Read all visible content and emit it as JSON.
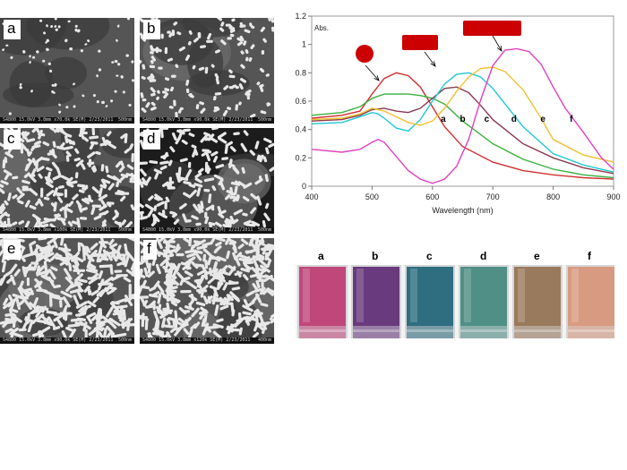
{
  "panels": [
    {
      "label": "a",
      "info": "S4800 15.0kV 3.8mm x70.0k SE(M) 2/23/2011",
      "scale": "500nm"
    },
    {
      "label": "b",
      "info": "S4800 15.0kV 3.8mm x90.0k SE(M) 2/23/2011",
      "scale": "500nm"
    },
    {
      "label": "c",
      "info": "S4800 15.0kV 3.8mm x100k SE(M) 2/23/2011",
      "scale": "500nm"
    },
    {
      "label": "d",
      "info": "S4800 15.0kV 3.8mm x90.0k SE(M) 2/23/2011",
      "scale": "500nm"
    },
    {
      "label": "e",
      "info": "S4800 15.0kV 3.8mm x90.0k SE(M) 2/23/2011",
      "scale": "500nm"
    },
    {
      "label": "f",
      "info": "S4800 15.0kV 3.8mm x120k SE(M) 2/23/2011",
      "scale": "400nm"
    }
  ],
  "vials": {
    "labels": [
      "a",
      "b",
      "c",
      "d",
      "e",
      "f"
    ],
    "colors": [
      "#c0477a",
      "#6a3a7e",
      "#2f6e80",
      "#4f8f86",
      "#9a7a5c",
      "#d89a80"
    ]
  },
  "chart_data": {
    "type": "line",
    "xlabel": "Wavelength  (nm)",
    "ylabel": "Abs.",
    "xlim": [
      400,
      900
    ],
    "ylim": [
      0,
      1.2
    ],
    "xticks": [
      400,
      500,
      600,
      700,
      800,
      900
    ],
    "yticks": [
      0,
      0.2,
      0.4,
      0.6,
      0.8,
      1,
      1.2
    ],
    "series": [
      {
        "name": "a",
        "color": "#d03030",
        "x": [
          400,
          450,
          480,
          500,
          520,
          540,
          560,
          580,
          600,
          620,
          650,
          700,
          750,
          800,
          850,
          900
        ],
        "y": [
          0.48,
          0.5,
          0.53,
          0.65,
          0.76,
          0.8,
          0.78,
          0.7,
          0.56,
          0.42,
          0.28,
          0.17,
          0.11,
          0.08,
          0.06,
          0.05
        ]
      },
      {
        "name": "b",
        "color": "#3cb040",
        "x": [
          400,
          450,
          480,
          500,
          520,
          540,
          560,
          580,
          600,
          620,
          650,
          700,
          750,
          800,
          850,
          900
        ],
        "y": [
          0.5,
          0.52,
          0.56,
          0.62,
          0.65,
          0.65,
          0.65,
          0.64,
          0.62,
          0.58,
          0.46,
          0.3,
          0.19,
          0.12,
          0.08,
          0.06
        ]
      },
      {
        "name": "c",
        "color": "#8b3a50",
        "x": [
          400,
          450,
          480,
          500,
          520,
          540,
          560,
          580,
          600,
          620,
          640,
          660,
          680,
          700,
          750,
          800,
          850,
          900
        ],
        "y": [
          0.46,
          0.47,
          0.5,
          0.54,
          0.55,
          0.53,
          0.52,
          0.55,
          0.62,
          0.69,
          0.7,
          0.66,
          0.57,
          0.47,
          0.3,
          0.2,
          0.13,
          0.09
        ]
      },
      {
        "name": "d",
        "color": "#20c8d8",
        "x": [
          400,
          450,
          480,
          500,
          510,
          520,
          540,
          560,
          580,
          600,
          620,
          640,
          660,
          680,
          700,
          750,
          800,
          850,
          900
        ],
        "y": [
          0.44,
          0.45,
          0.49,
          0.52,
          0.51,
          0.48,
          0.41,
          0.39,
          0.47,
          0.6,
          0.72,
          0.79,
          0.8,
          0.77,
          0.69,
          0.42,
          0.23,
          0.15,
          0.1
        ]
      },
      {
        "name": "e",
        "color": "#f0c030",
        "x": [
          400,
          450,
          480,
          500,
          520,
          540,
          560,
          580,
          600,
          620,
          640,
          660,
          680,
          700,
          720,
          750,
          780,
          800,
          850,
          900
        ],
        "y": [
          0.47,
          0.48,
          0.51,
          0.55,
          0.53,
          0.49,
          0.45,
          0.43,
          0.46,
          0.55,
          0.67,
          0.77,
          0.83,
          0.84,
          0.81,
          0.68,
          0.48,
          0.33,
          0.22,
          0.17
        ]
      },
      {
        "name": "f",
        "color": "#e040c0",
        "x": [
          400,
          450,
          480,
          500,
          510,
          520,
          540,
          560,
          580,
          600,
          620,
          640,
          660,
          680,
          700,
          720,
          740,
          760,
          780,
          800,
          820,
          850,
          880,
          900
        ],
        "y": [
          0.26,
          0.24,
          0.26,
          0.31,
          0.33,
          0.31,
          0.21,
          0.11,
          0.05,
          0.02,
          0.05,
          0.14,
          0.33,
          0.61,
          0.85,
          0.96,
          0.97,
          0.95,
          0.86,
          0.7,
          0.55,
          0.38,
          0.2,
          0.12
        ]
      }
    ],
    "labels": [
      {
        "text": "a",
        "x": 618,
        "y": 0.48
      },
      {
        "text": "b",
        "x": 650,
        "y": 0.48
      },
      {
        "text": "c",
        "x": 690,
        "y": 0.48
      },
      {
        "text": "d",
        "x": 735,
        "y": 0.48
      },
      {
        "text": "e",
        "x": 783,
        "y": 0.48
      },
      {
        "text": "f",
        "x": 830,
        "y": 0.48
      }
    ]
  }
}
